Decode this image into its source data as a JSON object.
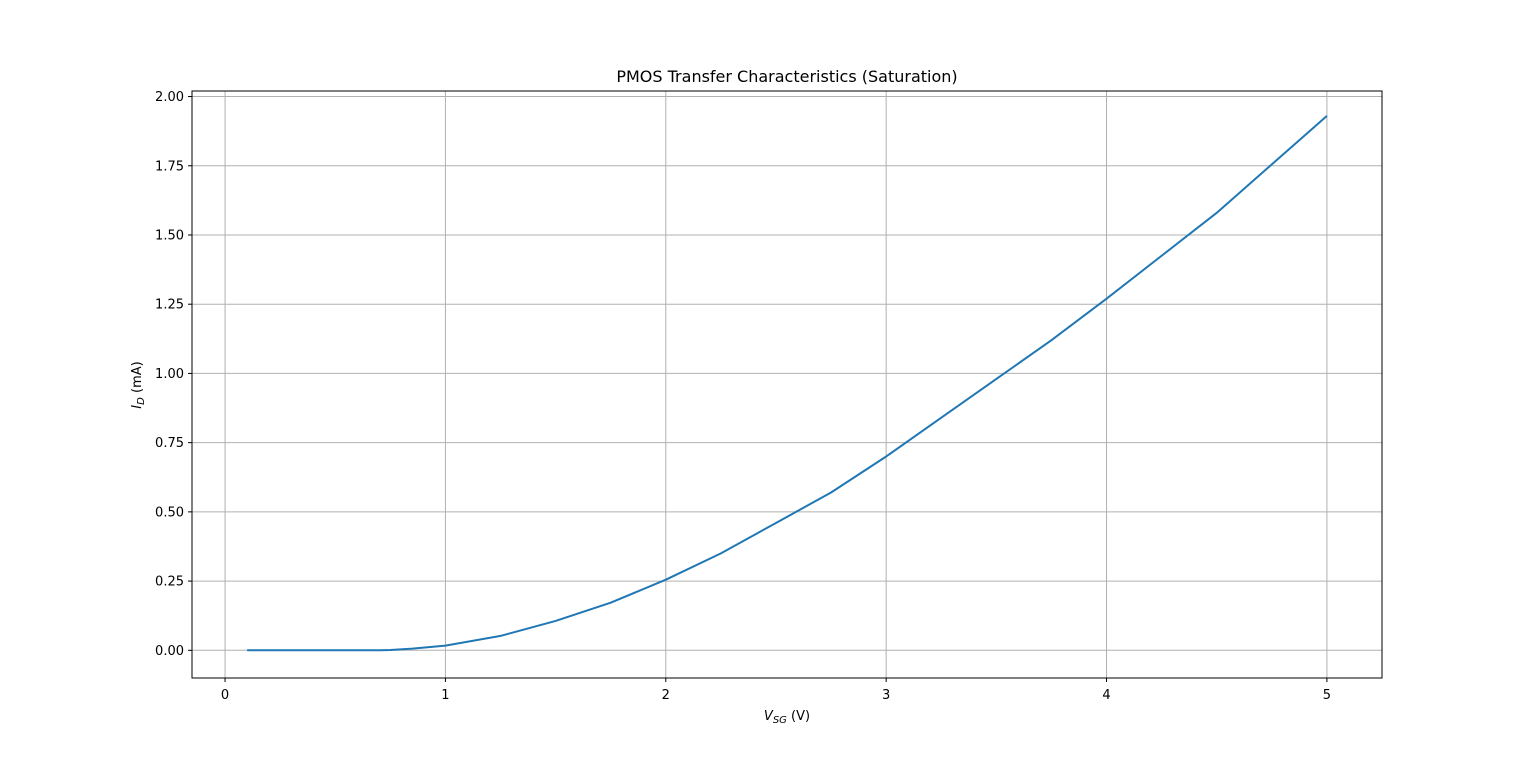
{
  "chart_data": {
    "type": "line",
    "title": "PMOS Transfer Characteristics (Saturation)",
    "xlabel": {
      "main": "V",
      "sub": "SG",
      "unit": " (V)"
    },
    "ylabel": {
      "main": "I",
      "sub": "D",
      "unit": " (mA)"
    },
    "xlim": [
      -0.15,
      5.25
    ],
    "ylim": [
      -0.1,
      2.02
    ],
    "xticks": [
      0,
      1,
      2,
      3,
      4,
      5
    ],
    "xtick_labels": [
      "0",
      "1",
      "2",
      "3",
      "4",
      "5"
    ],
    "yticks": [
      0.0,
      0.25,
      0.5,
      0.75,
      1.0,
      1.25,
      1.5,
      1.75,
      2.0
    ],
    "ytick_labels": [
      "0.00",
      "0.25",
      "0.50",
      "0.75",
      "1.00",
      "1.25",
      "1.50",
      "1.75",
      "2.00"
    ],
    "grid": true,
    "series": [
      {
        "color": "#1f77b4",
        "x": [
          0.1,
          0.35,
          0.6,
          0.7,
          0.75,
          0.85,
          1.0,
          1.25,
          1.5,
          1.75,
          2.0,
          2.25,
          2.5,
          2.75,
          3.0,
          3.25,
          3.5,
          3.75,
          4.0,
          4.25,
          4.5,
          4.75,
          5.0
        ],
        "y": [
          0.0,
          0.0,
          0.0,
          0.0,
          0.001,
          0.006,
          0.017,
          0.052,
          0.106,
          0.172,
          0.255,
          0.35,
          0.46,
          0.57,
          0.7,
          0.84,
          0.98,
          1.12,
          1.27,
          1.425,
          1.58,
          1.755,
          1.93
        ]
      }
    ]
  }
}
